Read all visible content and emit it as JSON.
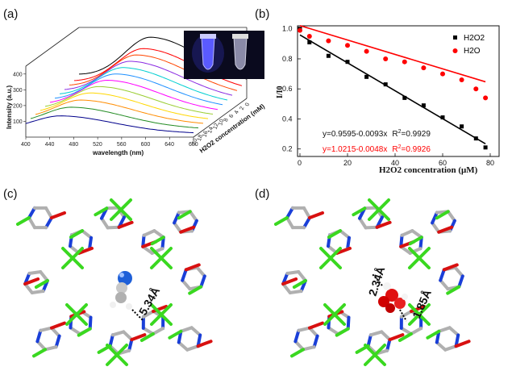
{
  "panels": {
    "a": {
      "label": "(a)"
    },
    "b": {
      "label": "(b)"
    },
    "c": {
      "label": "(c)",
      "distance_label": "5.34Å"
    },
    "d": {
      "label": "(d)",
      "distance_label_1": "2.34Å",
      "distance_label_2": "1.85Å"
    }
  },
  "chart_data": [
    {
      "type": "line",
      "panel": "a",
      "xlabel": "wavelength (nm)",
      "ylabel": "Intensity (a.u.)",
      "zlabel": "H2O2 concentration (mM)",
      "xlim": [
        400,
        680
      ],
      "x_ticks": [
        400,
        440,
        480,
        520,
        560,
        600,
        640,
        680
      ],
      "y_ticks": [
        100,
        200,
        300,
        400
      ],
      "z_ticks": [
        "20",
        "18",
        "16",
        "14",
        "12",
        "10",
        "8",
        "6",
        "4",
        "2",
        "0"
      ],
      "series_colors": [
        "#00008b",
        "#228b22",
        "#ff8c00",
        "#ffd700",
        "#9acd32",
        "#ff00ff",
        "#1e90ff",
        "#00ced1",
        "#8a2be2",
        "#ff4500",
        "#ff0000",
        "#000000"
      ],
      "peak_wavelengths": [
        460,
        470,
        478,
        486,
        492,
        498,
        504,
        508,
        512,
        515,
        518,
        522
      ],
      "peak_intensities": [
        140,
        175,
        200,
        225,
        245,
        265,
        285,
        305,
        325,
        345,
        365,
        420
      ]
    },
    {
      "type": "scatter",
      "panel": "b",
      "xlabel": "H2O2 concentration (μM)",
      "ylabel": "I/I0",
      "xlim": [
        0,
        80
      ],
      "ylim": [
        0.15,
        1.02
      ],
      "x_ticks": [
        0,
        20,
        40,
        60,
        80
      ],
      "y_ticks": [
        0.2,
        0.4,
        0.6,
        0.8,
        1.0
      ],
      "legend_position": "top-right",
      "series": [
        {
          "name": "H2O2",
          "color": "#000000",
          "marker": "square",
          "x": [
            0,
            4,
            12,
            20,
            28,
            36,
            44,
            52,
            60,
            68,
            74,
            78
          ],
          "y": [
            1.0,
            0.91,
            0.82,
            0.78,
            0.68,
            0.63,
            0.54,
            0.49,
            0.41,
            0.35,
            0.27,
            0.21
          ],
          "fit": {
            "intercept": 0.9595,
            "slope": -0.0093,
            "equation": "y=0.9595-0.0093x",
            "r2_label": "R",
            "r2_sup": "2",
            "r2_value": "=0.9929"
          }
        },
        {
          "name": "H2O",
          "color": "#ff0000",
          "marker": "circle",
          "x": [
            0,
            4,
            12,
            20,
            28,
            36,
            44,
            52,
            60,
            68,
            74,
            78
          ],
          "y": [
            0.99,
            0.95,
            0.92,
            0.89,
            0.85,
            0.8,
            0.78,
            0.74,
            0.7,
            0.66,
            0.6,
            0.54
          ],
          "fit": {
            "intercept": 1.0215,
            "slope": -0.0048,
            "equation": "y=1.0215-0.0048x",
            "r2_label": "R",
            "r2_sup": "2",
            "r2_value": "=0.9926"
          }
        }
      ]
    }
  ]
}
